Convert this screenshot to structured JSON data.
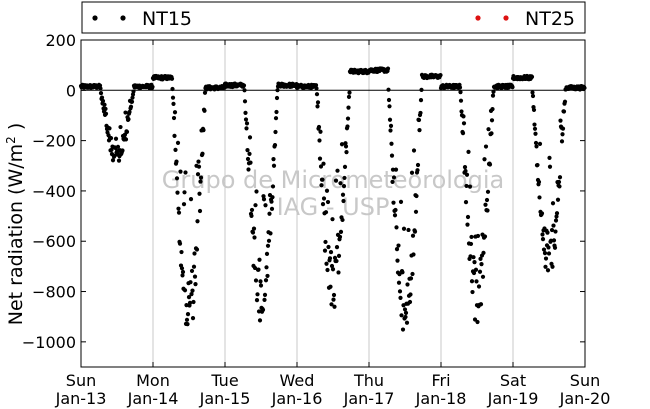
{
  "chart_data": {
    "type": "scatter",
    "title": "",
    "ylabel_main": "Net radiation (W/m",
    "ylabel_sup": "2",
    "ylabel_close": " )",
    "ylim": [
      -1100,
      200
    ],
    "y_ticks": [
      200,
      0,
      -200,
      -400,
      -600,
      -800,
      -1000
    ],
    "y_tick_labels": [
      "200",
      "0",
      "−200",
      "−400",
      "−600",
      "−800",
      "−1000"
    ],
    "xlim": [
      0,
      7
    ],
    "x_ticks": [
      0,
      1,
      2,
      3,
      4,
      5,
      6,
      7
    ],
    "x_tick_days": [
      "Sun",
      "Mon",
      "Tue",
      "Wed",
      "Thu",
      "Fri",
      "Sat",
      "Sun"
    ],
    "x_tick_dates": [
      "Jan-13",
      "Jan-14",
      "Jan-15",
      "Jan-16",
      "Jan-17",
      "Jan-18",
      "Jan-19",
      "Jan-20"
    ],
    "vertical_grid": true,
    "zero_line": true,
    "legend": {
      "placement": "top",
      "entries": [
        {
          "name": "NT15",
          "color": "#000000"
        },
        {
          "name": "NT25",
          "color": "#dd1111"
        }
      ]
    },
    "watermark": [
      "Grupo de Micrometeorologia",
      "IAG - USP"
    ],
    "series": [
      {
        "name": "NT15",
        "color": "#000000",
        "day_profiles": [
          {
            "day": "Jan-13",
            "min": -300,
            "night_start": 15,
            "night_end": 15
          },
          {
            "day": "Jan-14",
            "min": -980,
            "night_start": 50,
            "night_end": 10
          },
          {
            "day": "Jan-15",
            "min": -945,
            "night_start": 20,
            "night_end": 20
          },
          {
            "day": "Jan-16",
            "min": -895,
            "night_start": 15,
            "night_end": 75
          },
          {
            "day": "Jan-17",
            "min": -990,
            "night_start": 80,
            "night_end": 55
          },
          {
            "day": "Jan-18",
            "min": -935,
            "night_start": 15,
            "night_end": 15
          },
          {
            "day": "Jan-19",
            "min": -745,
            "night_start": 50,
            "night_end": 10
          }
        ]
      },
      {
        "name": "NT25",
        "color": "#dd1111",
        "day_profiles": []
      }
    ]
  }
}
